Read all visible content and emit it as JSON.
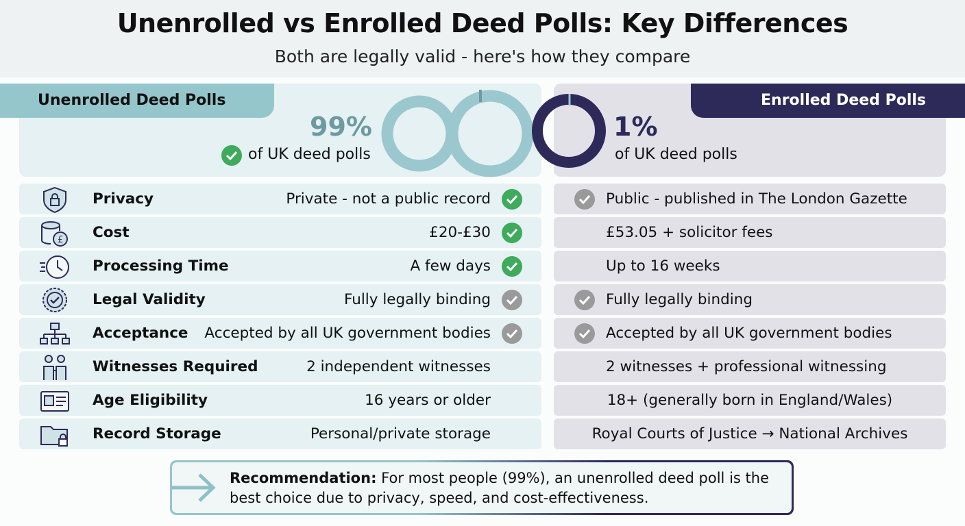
{
  "title": "Unenrolled vs Enrolled Deed Polls: Key Differences",
  "subtitle": "Both are legally valid - here's how they compare",
  "colors": {
    "unenrolled": "#95c6cc",
    "enrolled": "#2d2a5a",
    "check_green": "#3daa5c",
    "check_gray": "#9a9a9a"
  },
  "unenrolled": {
    "heading": "Unenrolled Deed Polls",
    "percent": "99%",
    "percent_value": 99,
    "caption": "of UK deed polls"
  },
  "enrolled": {
    "heading": "Enrolled Deed Polls",
    "percent": "1%",
    "percent_value": 1,
    "caption": "of UK deed polls"
  },
  "rows": [
    {
      "icon": "shield-lock-icon",
      "label": "Privacy",
      "unenrolled": "Private - not a public record",
      "u_check": "green",
      "enrolled": "Public - published in The London Gazette",
      "e_check": "gray"
    },
    {
      "icon": "coins-pound-icon",
      "label": "Cost",
      "unenrolled": "£20-£30",
      "u_check": "green",
      "enrolled": "£53.05 + solicitor fees",
      "e_check": ""
    },
    {
      "icon": "clock-icon",
      "label": "Processing Time",
      "unenrolled": "A few days",
      "u_check": "green",
      "enrolled": "Up to 16 weeks",
      "e_check": ""
    },
    {
      "icon": "badge-check-icon",
      "label": "Legal Validity",
      "unenrolled": "Fully legally binding",
      "u_check": "gray",
      "enrolled": "Fully legally binding",
      "e_check": "gray"
    },
    {
      "icon": "org-chart-icon",
      "label": "Acceptance",
      "unenrolled": "Accepted by all UK government bodies",
      "u_check": "gray",
      "enrolled": "Accepted by all UK government bodies",
      "e_check": "gray"
    },
    {
      "icon": "people-icon",
      "label": "Witnesses Required",
      "unenrolled": "2 independent witnesses",
      "u_check": "",
      "enrolled": "2 witnesses + professional witnessing",
      "e_check": ""
    },
    {
      "icon": "id-card-icon",
      "label": "Age Eligibility",
      "unenrolled": "16 years or older",
      "u_check": "",
      "enrolled": "18+ (generally born in England/Wales)",
      "e_check": ""
    },
    {
      "icon": "folder-lock-icon",
      "label": "Record Storage",
      "unenrolled": "Personal/private storage",
      "u_check": "",
      "enrolled": "Royal Courts of Justice → National Archives",
      "e_check": ""
    }
  ],
  "recommendation": {
    "label": "Recommendation:",
    "text": " For most people (99%), an unenrolled deed poll is the best choice due to privacy, speed, and cost-effectiveness."
  }
}
